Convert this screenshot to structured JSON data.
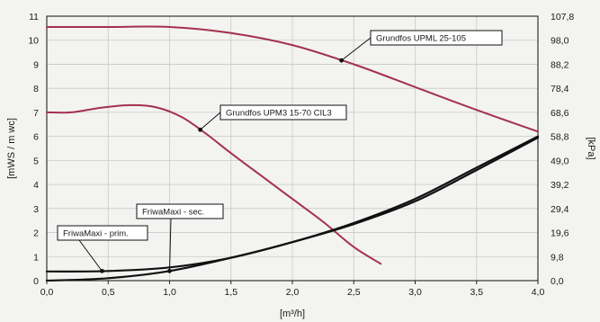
{
  "chart_data": {
    "type": "line",
    "xlabel": "[m³/h]",
    "ylabel": "[mWS / m wc]",
    "ylabel_right": "[kPa]",
    "xlim": [
      0,
      4
    ],
    "ylim": [
      0,
      11
    ],
    "x_ticks": [
      "0,0",
      "0,5",
      "1,0",
      "1,5",
      "2,0",
      "2,5",
      "3,0",
      "3,5",
      "4,0"
    ],
    "y_ticks": [
      "0",
      "1",
      "2",
      "3",
      "4",
      "5",
      "6",
      "7",
      "8",
      "9",
      "10",
      "11"
    ],
    "y2_ticks": [
      "0,0",
      "9,8",
      "19,6",
      "29,4",
      "39,2",
      "49,0",
      "58,8",
      "68,6",
      "78,4",
      "88,2",
      "98,0",
      "107,8"
    ],
    "grid": true,
    "colors": {
      "pump": "#a3314f",
      "system": "#111111"
    },
    "series": [
      {
        "name": "Grundfos UPML 25-105",
        "kind": "pump",
        "x": [
          0,
          0.5,
          1.0,
          1.5,
          2.0,
          2.5,
          3.0,
          3.5,
          4.0
        ],
        "y": [
          10.55,
          10.55,
          10.55,
          10.3,
          9.8,
          9.0,
          8.05,
          7.1,
          6.2
        ]
      },
      {
        "name": "Grundfos UPM3 15-70 CIL3",
        "kind": "pump",
        "x": [
          0,
          0.2,
          0.45,
          0.7,
          0.9,
          1.1,
          1.3,
          1.5,
          1.75,
          2.0,
          2.25,
          2.5,
          2.72
        ],
        "y": [
          7.0,
          7.0,
          7.2,
          7.3,
          7.2,
          6.8,
          6.1,
          5.3,
          4.35,
          3.4,
          2.45,
          1.4,
          0.7
        ]
      },
      {
        "name": "FriwaMaxi - prim.",
        "kind": "system",
        "x": [
          0,
          0.5,
          1.0,
          1.5,
          2.0,
          2.5,
          3.0,
          3.5,
          4.0
        ],
        "y": [
          0.38,
          0.4,
          0.55,
          0.95,
          1.6,
          2.35,
          3.3,
          4.6,
          5.95
        ]
      },
      {
        "name": "FriwaMaxi - sec.",
        "kind": "system",
        "x": [
          0,
          0.5,
          1.0,
          1.5,
          2.0,
          2.5,
          3.0,
          3.5,
          4.0
        ],
        "y": [
          0.0,
          0.1,
          0.4,
          0.95,
          1.6,
          2.4,
          3.4,
          4.7,
          6.0
        ]
      }
    ],
    "annotations": [
      {
        "text": "Grundfos UPML 25-105",
        "series": 0,
        "at_x": 2.4
      },
      {
        "text": "Grundfos UPM3 15-70 CIL3",
        "series": 1,
        "at_x": 1.25
      },
      {
        "text": "FriwaMaxi - sec.",
        "series": 3,
        "at_x": 1.0
      },
      {
        "text": "FriwaMaxi - prim.",
        "series": 2,
        "at_x": 0.45
      }
    ]
  }
}
